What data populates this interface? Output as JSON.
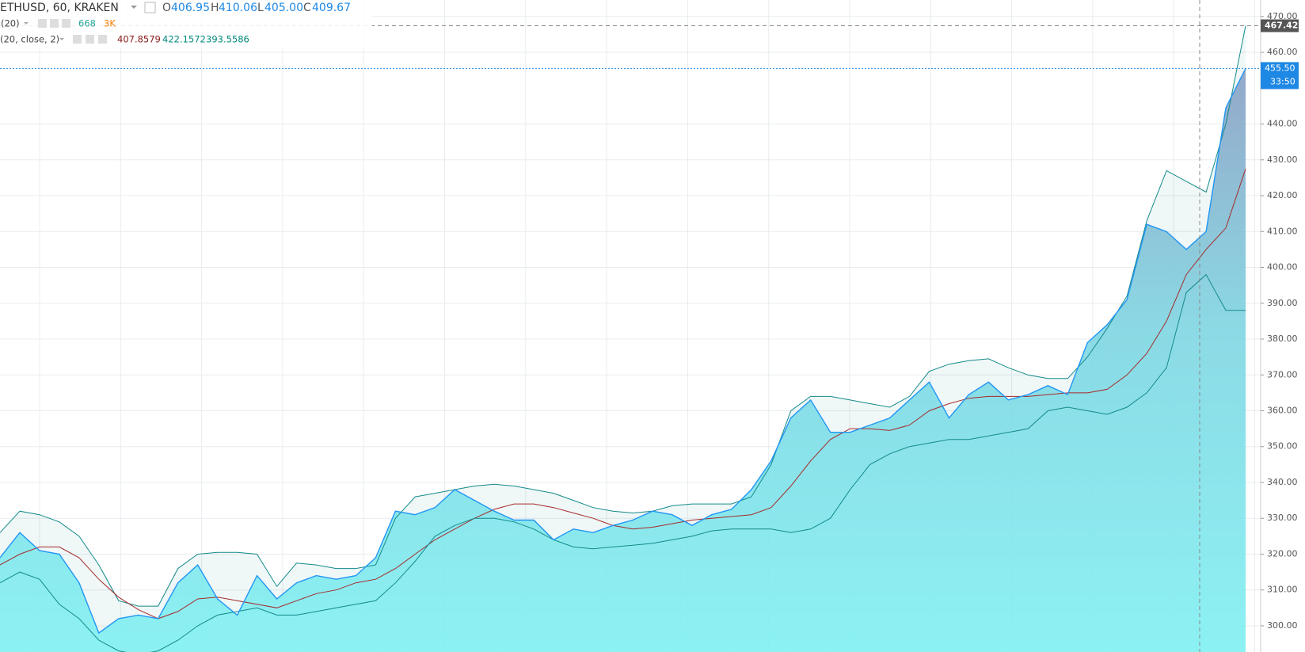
{
  "chart_data": {
    "type": "area",
    "title": "ETHUSD, 60, KRAKEN",
    "ohlc": [
      {
        "label": "O",
        "value": "406.95"
      },
      {
        "label": "H",
        "value": "410.06"
      },
      {
        "label": "L",
        "value": "405.00"
      },
      {
        "label": "C",
        "value": "409.67"
      }
    ],
    "volume_indicator": {
      "params": "(20)",
      "values": [
        "668",
        "3K"
      ],
      "colors": [
        "#26a69a",
        "#f57c00"
      ]
    },
    "bb_indicator": {
      "params": "(20, close, 2)",
      "values": [
        "407.8579",
        "422.1572",
        "393.5586"
      ],
      "colors": [
        "#8b1a1a",
        "#00897b",
        "#00897b"
      ]
    },
    "ylim": [
      292.7,
      474.6
    ],
    "yticks": [
      {
        "value": 300,
        "label": "300.00"
      },
      {
        "value": 310,
        "label": "310.00"
      },
      {
        "value": 320,
        "label": "320.00"
      },
      {
        "value": 330,
        "label": "330.00"
      },
      {
        "value": 340,
        "label": "340.00"
      },
      {
        "value": 350,
        "label": "350.00"
      },
      {
        "value": 360,
        "label": "360.00"
      },
      {
        "value": 370,
        "label": "370.00"
      },
      {
        "value": 380,
        "label": "380.00"
      },
      {
        "value": 390,
        "label": "390.00"
      },
      {
        "value": 400,
        "label": "400.00"
      },
      {
        "value": 410,
        "label": "410.00"
      },
      {
        "value": 420,
        "label": "420.00"
      },
      {
        "value": 430,
        "label": "430.00"
      },
      {
        "value": 440,
        "label": "440.00"
      },
      {
        "value": 460,
        "label": "460.00"
      },
      {
        "value": 470,
        "label": "470.00"
      }
    ],
    "grid": true,
    "series": [
      {
        "name": "Upper",
        "color": "#138a8a",
        "values": [
          326,
          332,
          331,
          329,
          325,
          317,
          307,
          305.5,
          305.5,
          316,
          320,
          320.5,
          320.5,
          320,
          311,
          317.5,
          317,
          316,
          316,
          317,
          330,
          336,
          337,
          338,
          339,
          339.5,
          339,
          338,
          337,
          335,
          333,
          332,
          331.5,
          332,
          333.5,
          334,
          334,
          334,
          336,
          345,
          360,
          364,
          364,
          363,
          362,
          361,
          364,
          371,
          373,
          374,
          374.5,
          372,
          370,
          369,
          369,
          375,
          383,
          392,
          413,
          427,
          424,
          421,
          440,
          467.42
        ]
      },
      {
        "name": "Basis",
        "color": "#a52a2a",
        "values": [
          317,
          320,
          322,
          322,
          319,
          313,
          308,
          304.5,
          302,
          304,
          307.5,
          308,
          307,
          306,
          305,
          307,
          309,
          310,
          312,
          313,
          316,
          320,
          324,
          327,
          330,
          332.5,
          334,
          334,
          333,
          331.5,
          330,
          328,
          327,
          327.5,
          328.5,
          329.5,
          330,
          330.5,
          331,
          333,
          339,
          346,
          352,
          355,
          355,
          354.5,
          356,
          360,
          362,
          363.5,
          364,
          364,
          364,
          364.5,
          365,
          365,
          366,
          370,
          376,
          385,
          398,
          405,
          411,
          427.5
        ]
      },
      {
        "name": "Lower",
        "color": "#138a8a",
        "values": [
          312,
          315,
          313,
          306,
          302,
          296,
          293,
          292,
          293,
          296,
          300,
          303,
          304,
          305,
          303,
          303,
          304,
          305,
          306,
          307,
          312,
          318,
          325,
          328,
          330,
          330,
          329,
          327,
          324,
          322,
          321.5,
          322,
          322.5,
          323,
          324,
          325,
          326.5,
          327,
          327,
          327,
          326,
          327,
          330,
          338,
          345,
          348,
          350,
          351,
          352,
          352,
          353,
          354,
          355,
          360,
          361,
          360,
          359,
          361,
          365,
          372,
          393,
          398,
          388,
          388
        ]
      },
      {
        "name": "Close",
        "color": "#2196f3",
        "values": [
          319,
          326,
          321,
          320,
          312,
          298,
          302,
          303,
          302,
          312,
          317,
          307.5,
          303,
          314,
          307.5,
          312,
          314,
          313,
          314,
          319,
          332,
          331,
          333,
          338,
          335,
          332,
          329.5,
          329.5,
          324,
          327,
          326,
          328,
          329.5,
          332,
          331,
          328,
          331,
          332.5,
          338,
          346,
          358,
          363,
          354,
          354,
          356,
          358,
          363,
          368,
          358,
          364.5,
          368,
          363,
          364.5,
          367,
          364.5,
          379,
          384,
          391,
          412,
          410,
          405,
          410,
          444.5,
          455.5
        ]
      }
    ],
    "last_price": {
      "value": 455.5,
      "label": "455.50",
      "countdown": "33:50"
    },
    "crosshair": {
      "value": 467.42,
      "label": "467.42"
    }
  }
}
